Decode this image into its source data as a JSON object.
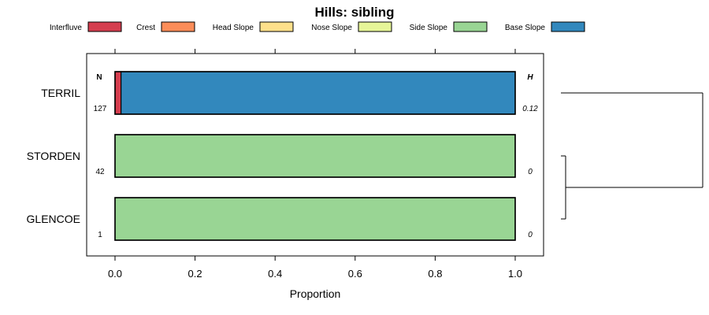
{
  "chart_data": {
    "type": "bar",
    "orientation": "horizontal",
    "stacked": true,
    "title": "Hills: sibling",
    "xlabel": "Proportion",
    "ylabel": "",
    "xlim": [
      -0.07,
      1.07
    ],
    "xticks": [
      0.0,
      0.2,
      0.4,
      0.6,
      0.8,
      1.0
    ],
    "xtick_labels": [
      "0.0",
      "0.2",
      "0.4",
      "0.6",
      "0.8",
      "1.0"
    ],
    "legend_position": "top",
    "categories": [
      "TERRIL",
      "STORDEN",
      "GLENCOE"
    ],
    "series": [
      {
        "name": "Interfluve",
        "color": "#D53E4F",
        "values": [
          0.015,
          0.0,
          0.0
        ]
      },
      {
        "name": "Crest",
        "color": "#FC8D59",
        "values": [
          0.0,
          0.0,
          0.0
        ]
      },
      {
        "name": "Head Slope",
        "color": "#FEE08B",
        "values": [
          0.0,
          0.0,
          0.0
        ]
      },
      {
        "name": "Nose Slope",
        "color": "#E6F598",
        "values": [
          0.0,
          0.0,
          0.0
        ]
      },
      {
        "name": "Side Slope",
        "color": "#99D594",
        "values": [
          0.0,
          1.0,
          1.0
        ]
      },
      {
        "name": "Base Slope",
        "color": "#3288BD",
        "values": [
          0.985,
          0.0,
          0.0
        ]
      }
    ],
    "n_header": "N",
    "n_values": [
      "127",
      "42",
      "1"
    ],
    "h_header": "H",
    "h_values": [
      "0.12",
      "0",
      "0"
    ],
    "dendrogram": {
      "leaves": [
        "TERRIL",
        "STORDEN",
        "GLENCOE"
      ],
      "merges": [
        {
          "left": "STORDEN",
          "right": "GLENCOE",
          "height": 0.05
        },
        {
          "left": "TERRIL",
          "right": "STORDEN+GLENCOE",
          "height": 1.0
        }
      ]
    }
  }
}
